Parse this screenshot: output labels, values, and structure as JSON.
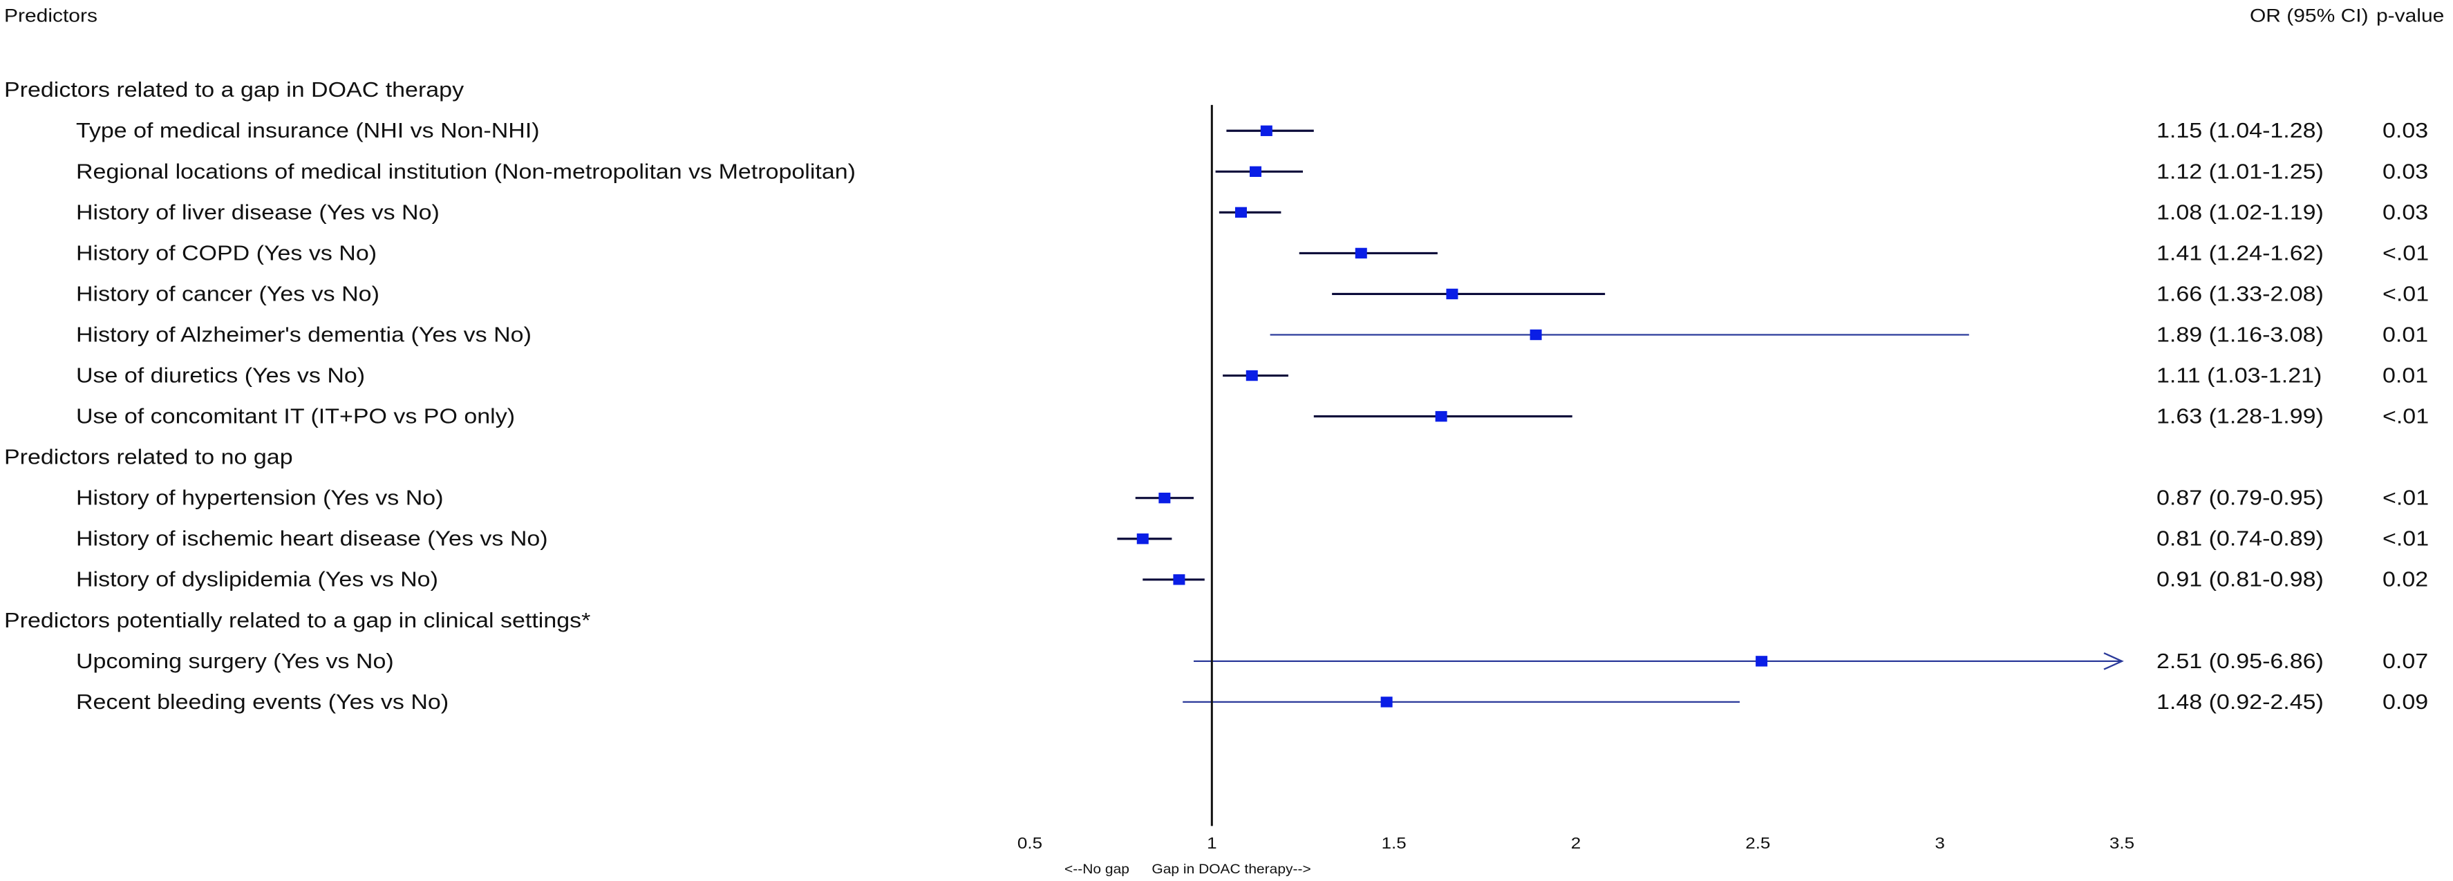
{
  "header": {
    "predictors_title": "Predictors",
    "or_title": "OR (95% CI)",
    "p_title": "p-value"
  },
  "colors": {
    "point": "#0a1ee6",
    "ci_dark": "#0b0b3a",
    "ci_blue": "#2b3a9a",
    "axis": "#111111"
  },
  "chart_data": {
    "type": "forest",
    "x_axis": {
      "range": [
        0.5,
        3.5
      ],
      "ticks": [
        0.5,
        1,
        1.5,
        2,
        2.5,
        3,
        3.5
      ],
      "tick_labels": [
        "0.5",
        "1",
        "1.5",
        "2",
        "2.5",
        "3",
        "3.5"
      ],
      "reference_line": 1,
      "left_direction_label": "<--No gap",
      "right_direction_label": "Gap in DOAC therapy-->"
    },
    "groups": [
      {
        "title": "Predictors related to a gap in DOAC therapy",
        "rows": [
          {
            "label": "Type of medical insurance (NHI vs Non-NHI)",
            "or": 1.15,
            "lo": 1.04,
            "hi": 1.28,
            "or_text": "1.15 (1.04-1.28)",
            "p": "0.03"
          },
          {
            "label": "Regional locations of medical institution (Non-metropolitan vs Metropolitan)",
            "or": 1.12,
            "lo": 1.01,
            "hi": 1.25,
            "or_text": "1.12 (1.01-1.25)",
            "p": "0.03"
          },
          {
            "label": "History of liver disease (Yes vs No)",
            "or": 1.08,
            "lo": 1.02,
            "hi": 1.19,
            "or_text": "1.08 (1.02-1.19)",
            "p": "0.03"
          },
          {
            "label": "History of COPD (Yes vs No)",
            "or": 1.41,
            "lo": 1.24,
            "hi": 1.62,
            "or_text": "1.41 (1.24-1.62)",
            "p": "<.01"
          },
          {
            "label": "History of cancer (Yes vs No)",
            "or": 1.66,
            "lo": 1.33,
            "hi": 2.08,
            "or_text": "1.66 (1.33-2.08)",
            "p": "<.01"
          },
          {
            "label": "History of Alzheimer's dementia (Yes vs No)",
            "or": 1.89,
            "lo": 1.16,
            "hi": 3.08,
            "or_text": "1.89 (1.16-3.08)",
            "p": "0.01",
            "ci_style": "blue"
          },
          {
            "label": "Use of diuretics (Yes vs No)",
            "or": 1.11,
            "lo": 1.03,
            "hi": 1.21,
            "or_text": "1.11 (1.03-1.21)",
            "p": "0.01"
          },
          {
            "label": "Use of concomitant IT (IT+PO vs PO only)",
            "or": 1.63,
            "lo": 1.28,
            "hi": 1.99,
            "or_text": "1.63 (1.28-1.99)",
            "p": "<.01"
          }
        ]
      },
      {
        "title": "Predictors related to no gap",
        "rows": [
          {
            "label": "History of hypertension (Yes vs No)",
            "or": 0.87,
            "lo": 0.79,
            "hi": 0.95,
            "or_text": "0.87 (0.79-0.95)",
            "p": "<.01"
          },
          {
            "label": "History of ischemic heart disease (Yes vs No)",
            "or": 0.81,
            "lo": 0.74,
            "hi": 0.89,
            "or_text": "0.81 (0.74-0.89)",
            "p": "<.01"
          },
          {
            "label": "History of dyslipidemia (Yes vs No)",
            "or": 0.91,
            "lo": 0.81,
            "hi": 0.98,
            "or_text": "0.91 (0.81-0.98)",
            "p": "0.02"
          }
        ]
      },
      {
        "title": "Predictors potentially related to a gap in clinical settings*",
        "rows": [
          {
            "label": "Upcoming surgery (Yes vs No)",
            "or": 2.51,
            "lo": 0.95,
            "hi": 6.86,
            "or_text": "2.51 (0.95-6.86)",
            "p": "0.07",
            "ci_style": "blue",
            "arrow_right": true
          },
          {
            "label": "Recent bleeding events (Yes vs No)",
            "or": 1.48,
            "lo": 0.92,
            "hi": 2.45,
            "or_text": "1.48 (0.92-2.45)",
            "p": "0.09",
            "ci_style": "blue"
          }
        ]
      }
    ]
  }
}
